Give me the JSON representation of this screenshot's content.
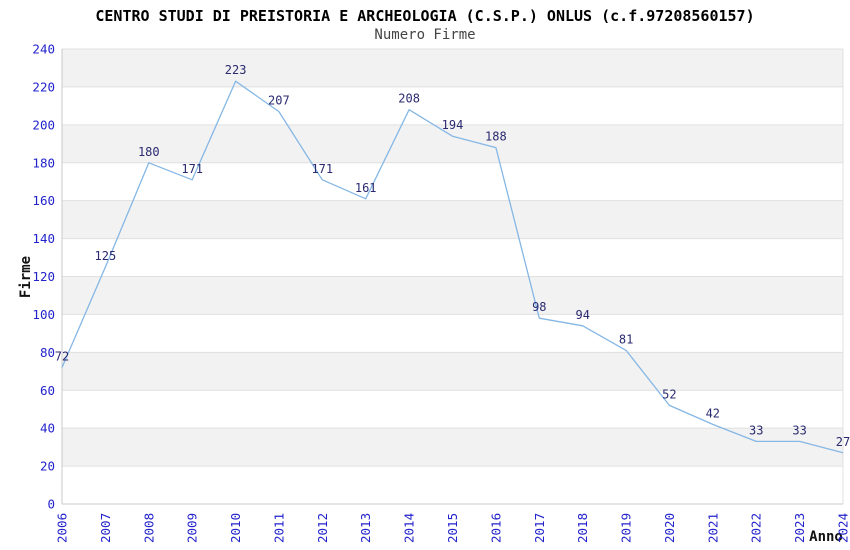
{
  "header": {
    "title": "CENTRO STUDI DI PREISTORIA E ARCHEOLOGIA (C.S.P.) ONLUS (c.f.97208560157)",
    "subtitle": "Numero Firme"
  },
  "chart_data": {
    "type": "line",
    "title": "CENTRO STUDI DI PREISTORIA E ARCHEOLOGIA (C.S.P.) ONLUS (c.f.97208560157)",
    "subtitle": "Numero Firme",
    "xlabel": "Anno",
    "ylabel": "Firme",
    "x": [
      "2006",
      "2007",
      "2008",
      "2009",
      "2010",
      "2011",
      "2012",
      "2013",
      "2014",
      "2015",
      "2016",
      "2017",
      "2018",
      "2019",
      "2020",
      "2021",
      "2022",
      "2023",
      "2024"
    ],
    "series": [
      {
        "name": "Numero Firme",
        "values": [
          72,
          125,
          180,
          171,
          223,
          207,
          171,
          161,
          208,
          194,
          188,
          98,
          94,
          81,
          52,
          42,
          33,
          33,
          27
        ]
      }
    ],
    "point_labels_shown": true,
    "ylim": [
      0,
      240
    ],
    "ytick_step": 20,
    "yticks": [
      0,
      20,
      40,
      60,
      80,
      100,
      120,
      140,
      160,
      180,
      200,
      220,
      240
    ],
    "grid": "horizontal-bands",
    "legend_position": "none",
    "colors": {
      "line": "#85b7e5",
      "point_label": "#2a2a70",
      "tick_label": "#2323cc",
      "band_fill": "#f2f2f2",
      "gridline": "#e0e0e0",
      "spine": "#c9c9c9",
      "title": "#000000",
      "subtitle": "#444444",
      "axis_title": "#111111",
      "background": "#ffffff"
    }
  }
}
